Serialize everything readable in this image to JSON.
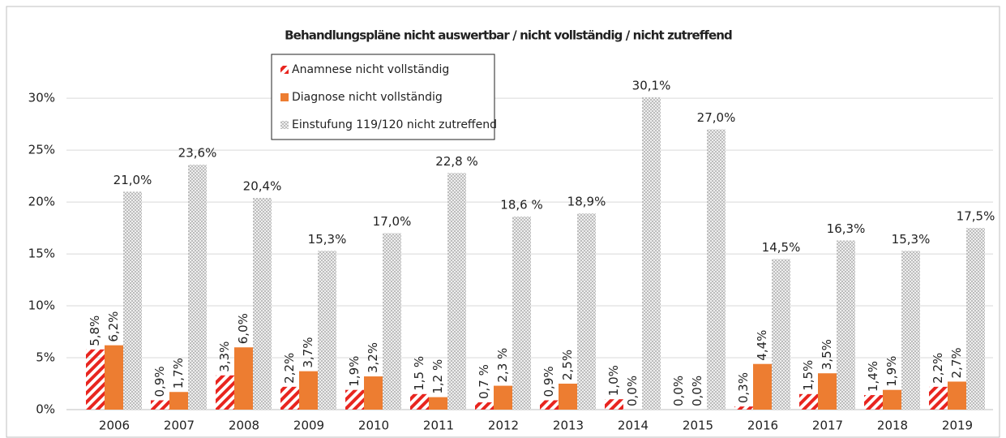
{
  "chart_data": {
    "type": "bar",
    "title": "Behandlungspläne nicht auswertbar / nicht vollständig / nicht zutreffend",
    "categories": [
      "2006",
      "2007",
      "2008",
      "2009",
      "2010",
      "2011",
      "2012",
      "2013",
      "2014",
      "2015",
      "2016",
      "2017",
      "2018",
      "2019"
    ],
    "series": [
      {
        "name": "Anamnese nicht vollständig",
        "color": "#e8251f",
        "pattern": "diagonal-stripes",
        "values": [
          5.8,
          0.9,
          3.3,
          2.2,
          1.9,
          1.5,
          0.7,
          0.9,
          1.0,
          0.0,
          0.3,
          1.5,
          1.4,
          2.2
        ],
        "value_labels": [
          "5,8%",
          "0,9%",
          "3,3%",
          "2,2%",
          "1,9%",
          "1,5 %",
          "0,7 %",
          "0,9%",
          "1,0%",
          "0,0%",
          "0,3%",
          "1,5%",
          "1,4%",
          "2,2%"
        ]
      },
      {
        "name": "Diagnose nicht vollständig",
        "color": "#ed7d31",
        "pattern": "solid",
        "values": [
          6.2,
          1.7,
          6.0,
          3.7,
          3.2,
          1.2,
          2.3,
          2.5,
          0.0,
          0.0,
          4.4,
          3.5,
          1.9,
          2.7
        ],
        "value_labels": [
          "6,2%",
          "1,7%",
          "6,0%",
          "3,7%",
          "3,2%",
          "1,2 %",
          "2,3 %",
          "2,5%",
          "0,0%",
          "0,0%",
          "4,4%",
          "3,5%",
          "1,9%",
          "2,7%"
        ]
      },
      {
        "name": "Einstufung 119/120 nicht zutreffend",
        "color": "#bdbdbd",
        "pattern": "dots",
        "values": [
          21.0,
          23.6,
          20.4,
          15.3,
          17.0,
          22.8,
          18.6,
          18.9,
          30.1,
          27.0,
          14.5,
          16.3,
          15.3,
          17.5
        ],
        "value_labels": [
          "21,0%",
          "23,6%",
          "20,4%",
          "15,3%",
          "17,0%",
          "22,8 %",
          "18,6 %",
          "18,9%",
          "30,1%",
          "27,0%",
          "14,5%",
          "16,3%",
          "15,3%",
          "17,5%"
        ]
      }
    ],
    "ylim": [
      0,
      34
    ],
    "yticks": [
      {
        "value": 0,
        "label": "0%"
      },
      {
        "value": 5,
        "label": "5%"
      },
      {
        "value": 10,
        "label": "10%"
      },
      {
        "value": 15,
        "label": "15%"
      },
      {
        "value": 20,
        "label": "20%"
      },
      {
        "value": 25,
        "label": "25%"
      },
      {
        "value": 30,
        "label": "30%"
      }
    ],
    "grid": true,
    "legend": "top-left"
  }
}
